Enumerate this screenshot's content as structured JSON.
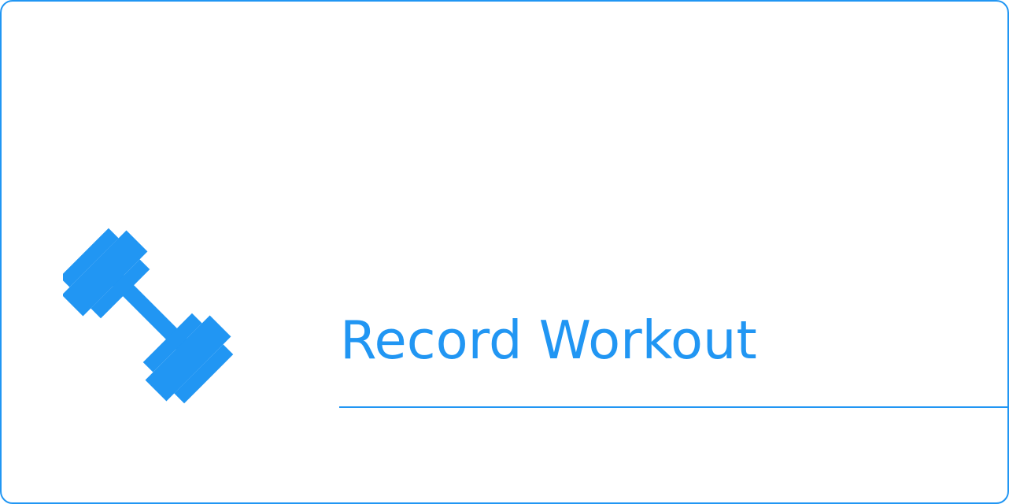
{
  "button": {
    "label": "Record Workout",
    "icon": "dumbbell-icon"
  },
  "colors": {
    "accent": "#2196F3",
    "background": "#FFFFFF"
  }
}
